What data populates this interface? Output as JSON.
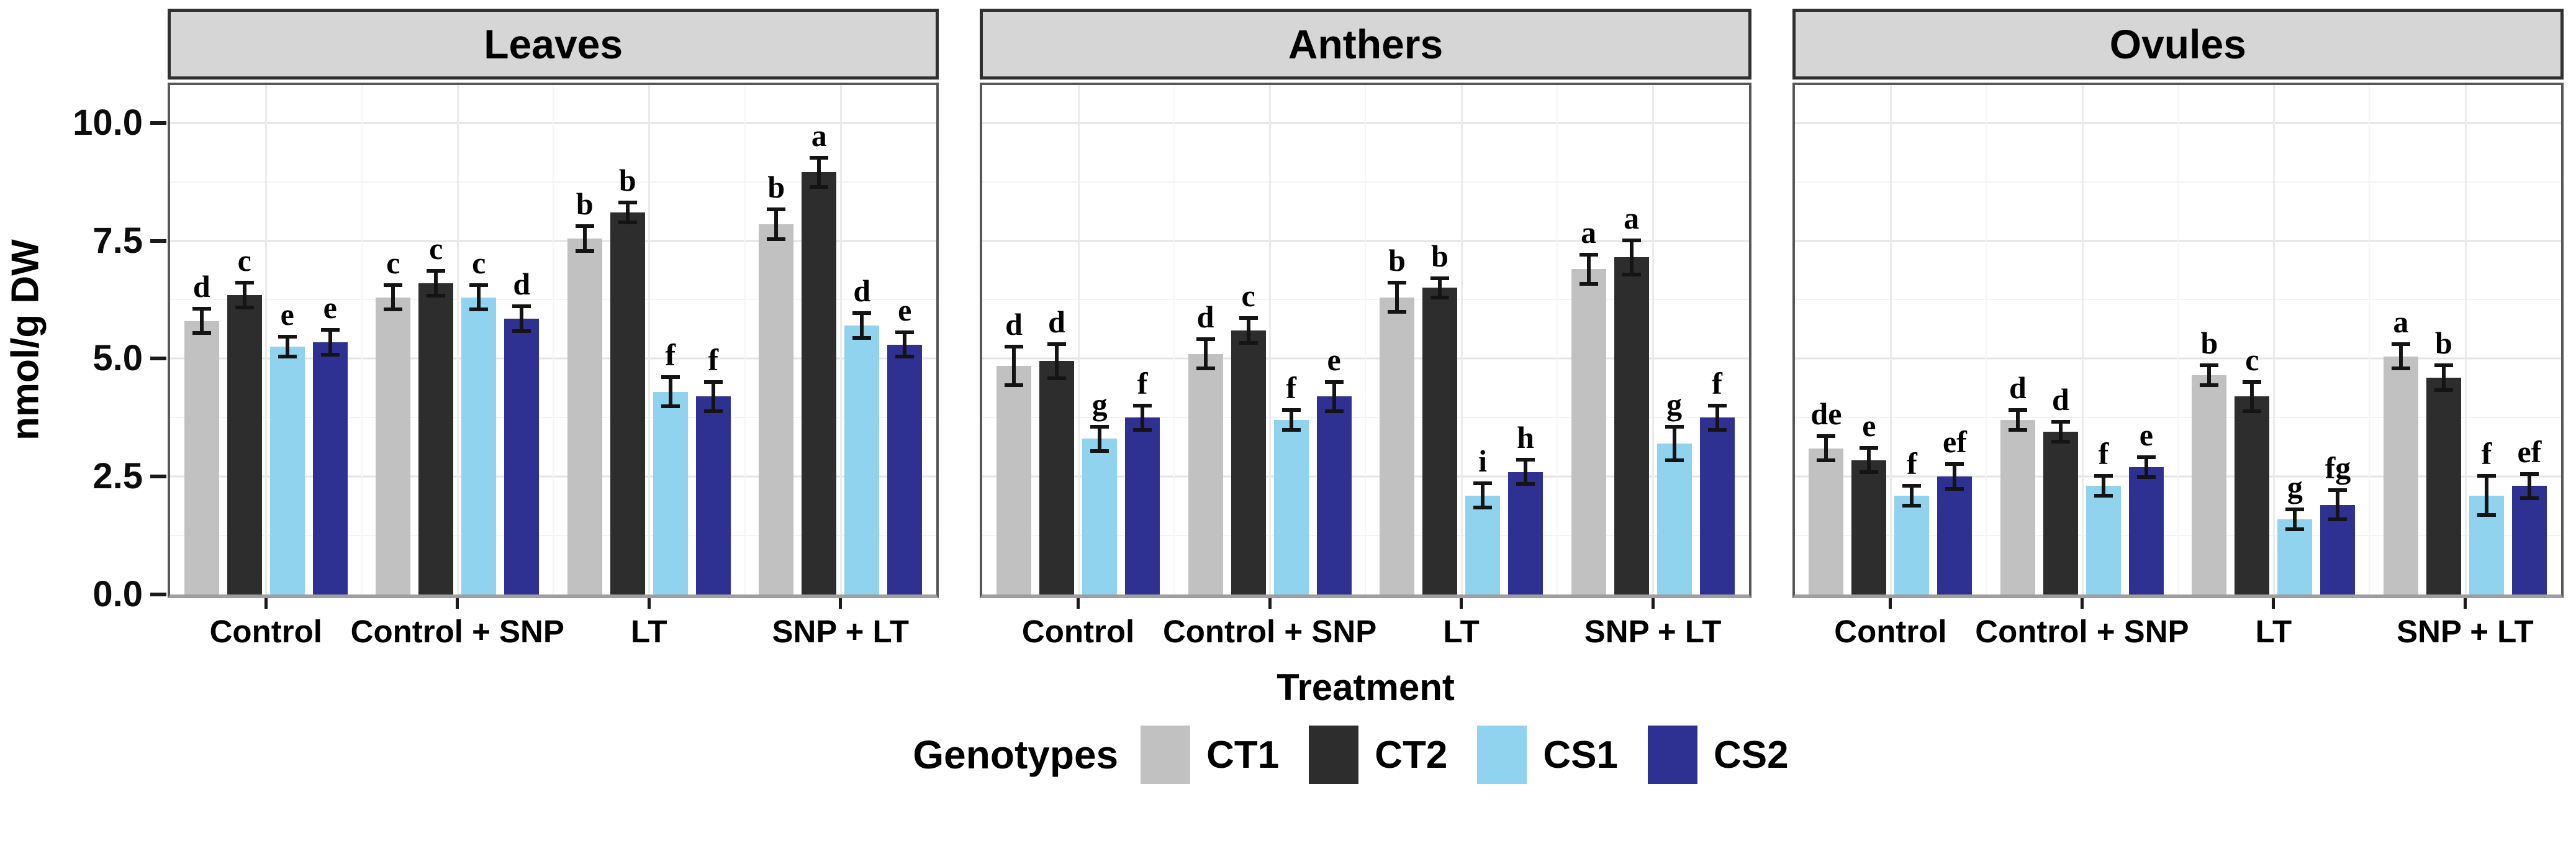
{
  "figure": {
    "y_axis_title": "nmol/g DW",
    "x_axis_title": "Treatment"
  },
  "chart_data": {
    "type": "bar",
    "title": "",
    "ylabel": "nmol/g DW",
    "xlabel": "Treatment",
    "ylim": [
      0,
      10.8
    ],
    "yticks": [
      0.0,
      2.5,
      5.0,
      7.5,
      10.0
    ],
    "ytick_labels": [
      "0.0",
      "2.5",
      "5.0",
      "7.5",
      "10.0"
    ],
    "minor_tick_step": 1.25,
    "grid": true,
    "legend": {
      "title": "Genotypes",
      "position": "bottom"
    },
    "categories": [
      "Control",
      "Control + SNP",
      "LT",
      "SNP + LT"
    ],
    "series_meta": [
      {
        "name": "CT1",
        "color": "#c1c1c1"
      },
      {
        "name": "CT2",
        "color": "#2d2d2d"
      },
      {
        "name": "CS1",
        "color": "#90d3ee"
      },
      {
        "name": "CS2",
        "color": "#2e3192"
      }
    ],
    "panels": [
      {
        "title": "Leaves",
        "series": [
          {
            "name": "CT1",
            "values": [
              5.8,
              6.3,
              7.55,
              7.85
            ],
            "errors": [
              0.3,
              0.3,
              0.3,
              0.35
            ],
            "letters": [
              "d",
              "c",
              "b",
              "b"
            ]
          },
          {
            "name": "CT2",
            "values": [
              6.35,
              6.6,
              8.1,
              8.95
            ],
            "errors": [
              0.3,
              0.3,
              0.25,
              0.35
            ],
            "letters": [
              "c",
              "c",
              "b",
              "a"
            ]
          },
          {
            "name": "CS1",
            "values": [
              5.25,
              6.3,
              4.3,
              5.7
            ],
            "errors": [
              0.25,
              0.3,
              0.35,
              0.3
            ],
            "letters": [
              "e",
              "c",
              "f",
              "d"
            ]
          },
          {
            "name": "CS2",
            "values": [
              5.35,
              5.85,
              4.2,
              5.3
            ],
            "errors": [
              0.3,
              0.3,
              0.35,
              0.3
            ],
            "letters": [
              "e",
              "d",
              "f",
              "e"
            ]
          }
        ]
      },
      {
        "title": "Anthers",
        "series": [
          {
            "name": "CT1",
            "values": [
              4.85,
              5.1,
              6.3,
              6.9
            ],
            "errors": [
              0.45,
              0.35,
              0.35,
              0.35
            ],
            "letters": [
              "d",
              "d",
              "b",
              "a"
            ]
          },
          {
            "name": "CT2",
            "values": [
              4.95,
              5.6,
              6.5,
              7.15
            ],
            "errors": [
              0.4,
              0.3,
              0.25,
              0.4
            ],
            "letters": [
              "d",
              "c",
              "b",
              "a"
            ]
          },
          {
            "name": "CS1",
            "values": [
              3.3,
              3.7,
              2.1,
              3.2
            ],
            "errors": [
              0.3,
              0.25,
              0.3,
              0.4
            ],
            "letters": [
              "g",
              "f",
              "i",
              "g"
            ]
          },
          {
            "name": "CS2",
            "values": [
              3.75,
              4.2,
              2.6,
              3.75
            ],
            "errors": [
              0.3,
              0.35,
              0.3,
              0.3
            ],
            "letters": [
              "f",
              "e",
              "h",
              "f"
            ]
          }
        ]
      },
      {
        "title": "Ovules",
        "series": [
          {
            "name": "CT1",
            "values": [
              3.1,
              3.7,
              4.65,
              5.05
            ],
            "errors": [
              0.3,
              0.25,
              0.25,
              0.3
            ],
            "letters": [
              "de",
              "d",
              "b",
              "a"
            ]
          },
          {
            "name": "CT2",
            "values": [
              2.85,
              3.45,
              4.2,
              4.6
            ],
            "errors": [
              0.3,
              0.25,
              0.35,
              0.3
            ],
            "letters": [
              "e",
              "d",
              "c",
              "b"
            ]
          },
          {
            "name": "CS1",
            "values": [
              2.1,
              2.3,
              1.6,
              2.1
            ],
            "errors": [
              0.25,
              0.25,
              0.25,
              0.45
            ],
            "letters": [
              "f",
              "f",
              "g",
              "f"
            ]
          },
          {
            "name": "CS2",
            "values": [
              2.5,
              2.7,
              1.9,
              2.3
            ],
            "errors": [
              0.3,
              0.25,
              0.35,
              0.3
            ],
            "letters": [
              "ef",
              "e",
              "fg",
              "ef"
            ]
          }
        ]
      }
    ],
    "style": {
      "strip_background": "#d6d6d6",
      "strip_border": "#303030",
      "panel_border": "#575757",
      "axis_line": "#9e9e9e",
      "grid_major": "#e4e4e4",
      "grid_minor": "#f3f3f3",
      "error_bar": "#141414",
      "tick": "#1a1a1a"
    }
  }
}
